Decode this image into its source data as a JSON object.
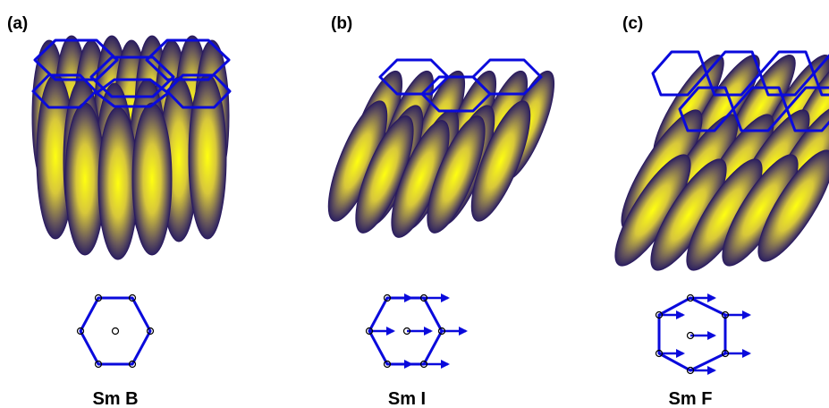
{
  "panels": [
    {
      "label": "(a)",
      "caption": "Sm B"
    },
    {
      "label": "(b)",
      "caption": "Sm I"
    },
    {
      "label": "(c)",
      "caption": "Sm F"
    }
  ]
}
